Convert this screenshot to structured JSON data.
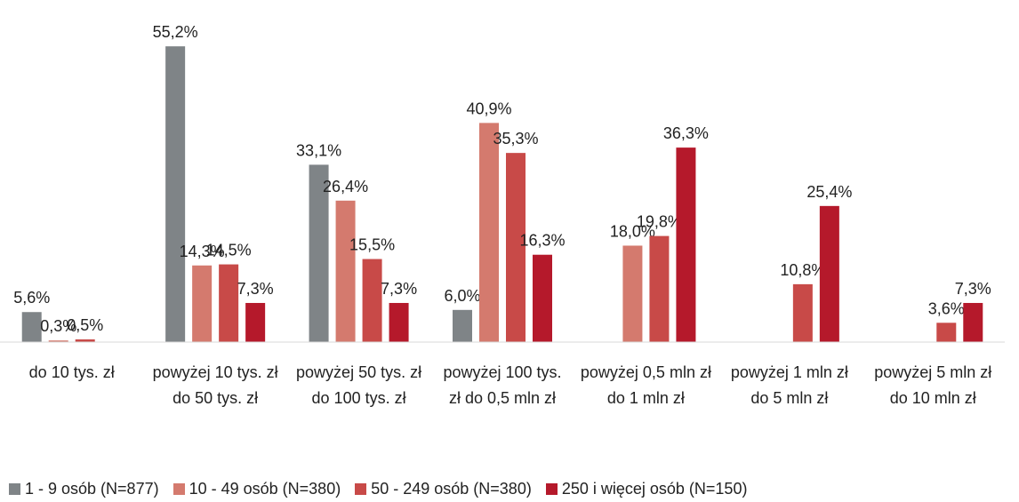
{
  "chart_data": {
    "type": "bar",
    "categories": [
      "do 10 tys. zł",
      "powyżej 10 tys. zł do 50 tys. zł",
      "powyżej 50 tys. zł do 100 tys. zł",
      "powyżej 100 tys. zł do 0,5 mln zł",
      "powyżej 0,5 mln zł do 1 mln zł",
      "powyżej 1 mln zł do 5 mln zł",
      "powyżej 5 mln zł do 10 mln zł"
    ],
    "series": [
      {
        "name": "1 - 9 osób (N=877)",
        "color": "#7f8487",
        "values": [
          5.6,
          55.2,
          33.1,
          6.0,
          null,
          null,
          null
        ],
        "value_labels": [
          "5,6%",
          "55,2%",
          "33,1%",
          "6,0%",
          null,
          null,
          null
        ]
      },
      {
        "name": "10 - 49 osób (N=380)",
        "color": "#d47a6e",
        "values": [
          0.3,
          14.3,
          26.4,
          40.9,
          18.0,
          null,
          null
        ],
        "value_labels": [
          "0,3%",
          "14,3%",
          "26,4%",
          "40,9%",
          "18,0%",
          null,
          null
        ]
      },
      {
        "name": "50 - 249 osób (N=380)",
        "color": "#c84a48",
        "values": [
          0.5,
          14.5,
          15.5,
          35.3,
          19.8,
          10.8,
          3.6
        ],
        "value_labels": [
          "0,5%",
          "14,5%",
          "15,5%",
          "35,3%",
          "19,8%",
          "10,8%",
          "3,6%"
        ]
      },
      {
        "name": "250 i więcej osób (N=150)",
        "color": "#b5192b",
        "values": [
          null,
          7.3,
          7.3,
          16.3,
          36.3,
          25.4,
          7.3
        ],
        "value_labels": [
          null,
          "7,3%",
          "7,3%",
          "16,3%",
          "36,3%",
          "25,4%",
          "7,3%"
        ]
      }
    ],
    "legend": "bottom"
  }
}
